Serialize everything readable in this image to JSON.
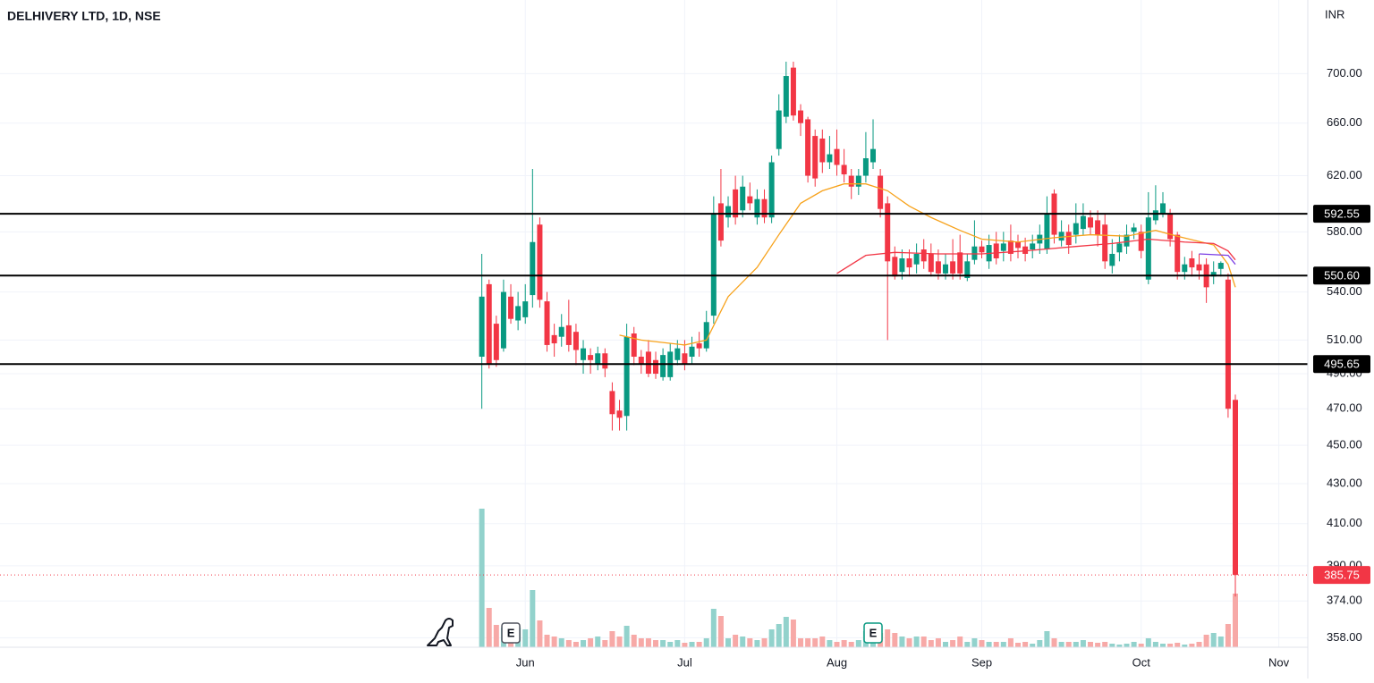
{
  "chart_data": {
    "type": "candlestick",
    "title": "DELHIVERY LTD, 1D, NSE",
    "currency": "INR",
    "log_scale": true,
    "grid": true,
    "up_color": "#089981",
    "down_color": "#f23645",
    "volume_up_color": "#92d2cc",
    "volume_down_color": "#f7a9a7",
    "xlim": [
      -66.5,
      114
    ],
    "xticks": [
      {
        "value": 6,
        "label": "Jun"
      },
      {
        "value": 28,
        "label": "Jul"
      },
      {
        "value": 49,
        "label": "Aug"
      },
      {
        "value": 69,
        "label": "Sep"
      },
      {
        "value": 91,
        "label": "Oct"
      },
      {
        "value": 110,
        "label": "Nov"
      }
    ],
    "ylim": [
      354,
      764
    ],
    "yticks": [
      {
        "value": 700,
        "label": "700.00"
      },
      {
        "value": 660,
        "label": "660.00"
      },
      {
        "value": 620,
        "label": "620.00"
      },
      {
        "value": 580,
        "label": "580.00"
      },
      {
        "value": 540,
        "label": "540.00"
      },
      {
        "value": 510,
        "label": "510.00"
      },
      {
        "value": 490,
        "label": "490.00"
      },
      {
        "value": 470,
        "label": "470.00"
      },
      {
        "value": 450,
        "label": "450.00"
      },
      {
        "value": 430,
        "label": "430.00"
      },
      {
        "value": 410,
        "label": "410.00"
      },
      {
        "value": 390,
        "label": "390.00"
      },
      {
        "value": 374,
        "label": "374.00"
      },
      {
        "value": 358,
        "label": "358.00"
      }
    ],
    "x": [
      0,
      1,
      2,
      3,
      4,
      5,
      6,
      7,
      8,
      9,
      10,
      11,
      12,
      13,
      14,
      15,
      16,
      17,
      18,
      19,
      20,
      21,
      22,
      23,
      24,
      25,
      26,
      27,
      28,
      29,
      30,
      31,
      32,
      33,
      34,
      35,
      36,
      37,
      38,
      39,
      40,
      41,
      42,
      43,
      44,
      45,
      46,
      47,
      48,
      49,
      50,
      51,
      52,
      53,
      54,
      55,
      56,
      57,
      58,
      59,
      60,
      61,
      62,
      63,
      64,
      65,
      66,
      67,
      68,
      69,
      70,
      71,
      72,
      73,
      74,
      75,
      76,
      77,
      78,
      79,
      80,
      81,
      82,
      83,
      84,
      85,
      86,
      87,
      88,
      89,
      90,
      91,
      92,
      93,
      94,
      95,
      96,
      97,
      98,
      99,
      100,
      101,
      102,
      103,
      104
    ],
    "open": [
      500,
      545,
      520,
      505,
      537,
      522,
      524,
      538,
      585,
      534,
      513,
      512,
      519,
      515,
      498,
      501,
      496,
      502,
      480,
      469,
      466,
      514,
      500,
      503,
      498,
      488,
      488,
      498,
      502,
      500,
      508,
      505,
      525,
      600,
      590,
      610,
      595,
      605,
      590,
      603,
      590,
      640,
      665,
      705,
      670,
      663,
      650,
      648,
      630,
      640,
      628,
      620,
      612,
      620,
      630,
      620,
      600,
      563,
      553,
      562,
      558,
      568,
      565,
      560,
      552,
      560,
      566,
      549,
      561,
      570,
      560,
      572,
      567,
      574,
      573,
      570,
      568,
      572,
      568,
      607,
      574,
      580,
      578,
      582,
      590,
      588,
      585,
      557,
      566,
      570,
      580,
      580,
      548,
      588,
      593,
      593,
      578,
      553,
      562,
      558,
      558,
      550,
      555,
      548,
      475
    ],
    "high": [
      565,
      548,
      525,
      548,
      545,
      540,
      545,
      625,
      590,
      540,
      520,
      526,
      535,
      520,
      510,
      505,
      506,
      505,
      485,
      475,
      520,
      518,
      504,
      510,
      503,
      505,
      508,
      510,
      510,
      512,
      515,
      528,
      605,
      625,
      605,
      620,
      620,
      615,
      610,
      610,
      635,
      683,
      710,
      710,
      675,
      665,
      655,
      655,
      650,
      655,
      640,
      625,
      625,
      653,
      663,
      625,
      605,
      570,
      568,
      568,
      572,
      575,
      572,
      568,
      565,
      575,
      578,
      565,
      588,
      574,
      578,
      580,
      580,
      585,
      578,
      576,
      578,
      585,
      605,
      610,
      588,
      585,
      600,
      600,
      595,
      595,
      592,
      575,
      578,
      585,
      586,
      585,
      608,
      613,
      608,
      596,
      580,
      563,
      567,
      565,
      562,
      560,
      560,
      552,
      478
    ],
    "low": [
      470,
      493,
      494,
      503,
      520,
      516,
      520,
      530,
      530,
      503,
      500,
      506,
      503,
      495,
      490,
      490,
      492,
      488,
      458,
      458,
      458,
      495,
      490,
      488,
      487,
      486,
      486,
      495,
      492,
      496,
      500,
      503,
      520,
      570,
      583,
      585,
      590,
      595,
      585,
      586,
      586,
      635,
      660,
      662,
      650,
      615,
      612,
      622,
      625,
      620,
      615,
      603,
      606,
      615,
      625,
      590,
      510,
      548,
      548,
      550,
      552,
      555,
      550,
      548,
      548,
      548,
      548,
      547,
      558,
      562,
      555,
      558,
      560,
      560,
      562,
      560,
      562,
      565,
      565,
      572,
      570,
      565,
      572,
      578,
      578,
      570,
      555,
      552,
      560,
      565,
      575,
      562,
      545,
      585,
      590,
      570,
      548,
      548,
      550,
      548,
      533,
      545,
      550,
      465,
      376
    ],
    "close": [
      537,
      496,
      498,
      540,
      523,
      531,
      534,
      573,
      535,
      507,
      508,
      518,
      507,
      504,
      505,
      498,
      502,
      493,
      467,
      465,
      512,
      500,
      496,
      490,
      490,
      501,
      503,
      505,
      496,
      506,
      505,
      521,
      592,
      574,
      598,
      590,
      612,
      600,
      603,
      590,
      630,
      670,
      698,
      666,
      660,
      620,
      618,
      630,
      636,
      628,
      621,
      612,
      620,
      633,
      640,
      596,
      560,
      550,
      562,
      556,
      565,
      560,
      553,
      552,
      558,
      552,
      552,
      560,
      570,
      566,
      571,
      562,
      572,
      565,
      569,
      565,
      572,
      578,
      592,
      578,
      580,
      571,
      586,
      591,
      583,
      578,
      560,
      565,
      572,
      578,
      583,
      567,
      590,
      595,
      600,
      575,
      553,
      558,
      556,
      554,
      543,
      553,
      559,
      470,
      385.75
    ],
    "volume": [
      155,
      44,
      25,
      22,
      22,
      22,
      20,
      64,
      30,
      14,
      12,
      10,
      8,
      6,
      8,
      10,
      12,
      8,
      18,
      12,
      24,
      14,
      10,
      10,
      8,
      8,
      6,
      8,
      5,
      6,
      6,
      10,
      43,
      35,
      10,
      14,
      12,
      10,
      8,
      10,
      20,
      26,
      34,
      31,
      10,
      10,
      10,
      12,
      8,
      6,
      8,
      6,
      8,
      18,
      24,
      16,
      20,
      16,
      12,
      10,
      12,
      12,
      8,
      10,
      6,
      8,
      12,
      6,
      10,
      8,
      6,
      6,
      6,
      10,
      5,
      6,
      4,
      8,
      18,
      10,
      6,
      6,
      6,
      8,
      6,
      5,
      6,
      4,
      3,
      4,
      6,
      4,
      10,
      6,
      4,
      4,
      5,
      3,
      4,
      6,
      14,
      16,
      12,
      26,
      60
    ],
    "moving_averages": [
      {
        "color": "#f7a21b",
        "x": [
          19,
          22,
          28,
          31,
          34,
          38,
          41,
          44,
          47,
          50,
          53,
          56,
          59,
          62,
          66,
          69,
          74,
          79,
          84,
          89,
          93,
          96,
          101,
          103,
          104
        ],
        "values": [
          513,
          510,
          507,
          510,
          537,
          556,
          578,
          600,
          609,
          614,
          614,
          609,
          598,
          590,
          581,
          575,
          573,
          576,
          578,
          577,
          581,
          577,
          571,
          558,
          543
        ]
      },
      {
        "color": "#f23645",
        "x": [
          49,
          53,
          57,
          63,
          69,
          75,
          82,
          87,
          92,
          97,
          101,
          103,
          104
        ],
        "values": [
          552,
          564,
          566,
          565,
          565,
          567,
          570,
          572,
          575,
          573,
          572,
          567,
          561
        ]
      },
      {
        "color": "#7b3fe4",
        "x": [
          99,
          103,
          104
        ],
        "values": [
          565,
          564,
          558
        ]
      }
    ],
    "levels": [
      {
        "value": 592.55,
        "value_label": "592.55"
      },
      {
        "value": 550.6,
        "value_label": "550.60"
      },
      {
        "value": 495.65,
        "value_label": "495.65"
      }
    ],
    "last_price": 385.75,
    "events": [
      {
        "x": 4,
        "label": "E",
        "color": "#50535e"
      },
      {
        "x": 54,
        "label": "E",
        "color": "#089981"
      }
    ]
  }
}
